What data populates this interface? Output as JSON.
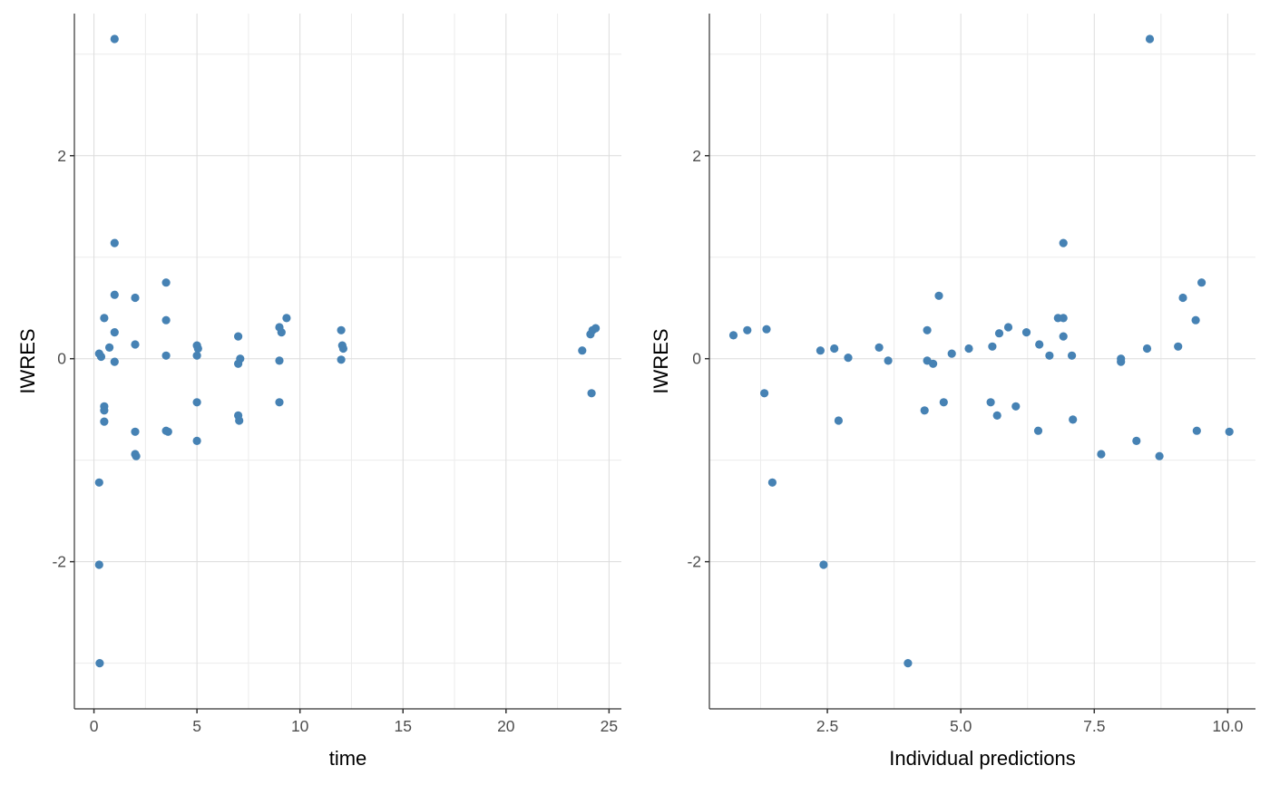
{
  "chart_data": [
    {
      "type": "scatter",
      "title": "",
      "xlabel": "time",
      "ylabel": "IWRES",
      "xlim": [
        -0.95,
        25.6
      ],
      "ylim": [
        -3.45,
        3.4
      ],
      "x_ticks": [
        0,
        5,
        10,
        15,
        20,
        25
      ],
      "x_tick_labels": [
        "0",
        "5",
        "10",
        "15",
        "20",
        "25"
      ],
      "y_ticks": [
        -2,
        0,
        2
      ],
      "y_tick_labels": [
        "-2",
        "0",
        "2"
      ],
      "grid": true,
      "point_color": "#4682B4",
      "points": [
        [
          1.0,
          3.15
        ],
        [
          1.0,
          1.14
        ],
        [
          1.0,
          0.63
        ],
        [
          2.0,
          0.6
        ],
        [
          0.5,
          0.4
        ],
        [
          1.0,
          0.26
        ],
        [
          0.75,
          0.11
        ],
        [
          2.0,
          0.14
        ],
        [
          0.25,
          0.05
        ],
        [
          0.35,
          0.02
        ],
        [
          1.0,
          -0.03
        ],
        [
          3.5,
          0.75
        ],
        [
          3.5,
          0.38
        ],
        [
          3.5,
          0.03
        ],
        [
          5.0,
          0.13
        ],
        [
          5.05,
          0.1
        ],
        [
          5.0,
          0.03
        ],
        [
          7.0,
          0.22
        ],
        [
          7.1,
          0.0
        ],
        [
          7.0,
          -0.05
        ],
        [
          9.0,
          0.31
        ],
        [
          9.35,
          0.4
        ],
        [
          9.1,
          0.26
        ],
        [
          9.0,
          -0.02
        ],
        [
          12.0,
          0.28
        ],
        [
          12.05,
          0.13
        ],
        [
          12.1,
          0.1
        ],
        [
          12.0,
          -0.01
        ],
        [
          23.7,
          0.08
        ],
        [
          24.1,
          0.24
        ],
        [
          24.2,
          0.28
        ],
        [
          24.35,
          0.3
        ],
        [
          24.15,
          -0.34
        ],
        [
          0.5,
          -0.47
        ],
        [
          0.5,
          -0.51
        ],
        [
          0.5,
          -0.62
        ],
        [
          2.0,
          -0.72
        ],
        [
          2.0,
          -0.94
        ],
        [
          2.05,
          -0.96
        ],
        [
          3.5,
          -0.71
        ],
        [
          3.6,
          -0.72
        ],
        [
          5.0,
          -0.43
        ],
        [
          5.0,
          -0.81
        ],
        [
          7.0,
          -0.56
        ],
        [
          7.05,
          -0.61
        ],
        [
          9.0,
          -0.43
        ],
        [
          0.25,
          -1.22
        ],
        [
          0.25,
          -2.03
        ],
        [
          0.28,
          -3.0
        ]
      ]
    },
    {
      "type": "scatter",
      "title": "",
      "xlabel": "Individual predictions",
      "ylabel": "IWRES",
      "xlim": [
        0.29,
        10.52
      ],
      "ylim": [
        -3.45,
        3.4
      ],
      "x_ticks": [
        2.5,
        5.0,
        7.5,
        10.0
      ],
      "x_tick_labels": [
        "2.5",
        "5.0",
        "7.5",
        "10.0"
      ],
      "y_ticks": [
        -2,
        0,
        2
      ],
      "y_tick_labels": [
        "-2",
        "0",
        "2"
      ],
      "grid": true,
      "point_color": "#4682B4",
      "points": [
        [
          0.74,
          0.23
        ],
        [
          1.0,
          0.28
        ],
        [
          1.36,
          0.29
        ],
        [
          2.37,
          0.08
        ],
        [
          2.63,
          0.1
        ],
        [
          2.89,
          0.01
        ],
        [
          3.47,
          0.11
        ],
        [
          3.64,
          -0.02
        ],
        [
          4.37,
          0.28
        ],
        [
          4.37,
          -0.02
        ],
        [
          4.48,
          -0.05
        ],
        [
          4.59,
          0.62
        ],
        [
          4.83,
          0.05
        ],
        [
          5.15,
          0.1
        ],
        [
          5.59,
          0.12
        ],
        [
          5.72,
          0.25
        ],
        [
          5.89,
          0.31
        ],
        [
          6.23,
          0.26
        ],
        [
          6.47,
          0.14
        ],
        [
          6.66,
          0.03
        ],
        [
          6.82,
          0.4
        ],
        [
          6.92,
          0.4
        ],
        [
          6.92,
          1.14
        ],
        [
          6.92,
          0.22
        ],
        [
          7.08,
          0.03
        ],
        [
          8.0,
          0.0
        ],
        [
          8.0,
          -0.03
        ],
        [
          8.54,
          3.15
        ],
        [
          8.49,
          0.1
        ],
        [
          9.07,
          0.12
        ],
        [
          9.16,
          0.6
        ],
        [
          9.4,
          0.38
        ],
        [
          9.51,
          0.75
        ],
        [
          1.32,
          -0.34
        ],
        [
          1.47,
          -1.22
        ],
        [
          2.43,
          -2.03
        ],
        [
          2.71,
          -0.61
        ],
        [
          4.01,
          -3.0
        ],
        [
          4.32,
          -0.51
        ],
        [
          4.68,
          -0.43
        ],
        [
          5.56,
          -0.43
        ],
        [
          5.68,
          -0.56
        ],
        [
          6.03,
          -0.47
        ],
        [
          6.45,
          -0.71
        ],
        [
          7.1,
          -0.6
        ],
        [
          7.63,
          -0.94
        ],
        [
          8.29,
          -0.81
        ],
        [
          8.72,
          -0.96
        ],
        [
          9.42,
          -0.71
        ],
        [
          10.03,
          -0.72
        ]
      ]
    }
  ]
}
